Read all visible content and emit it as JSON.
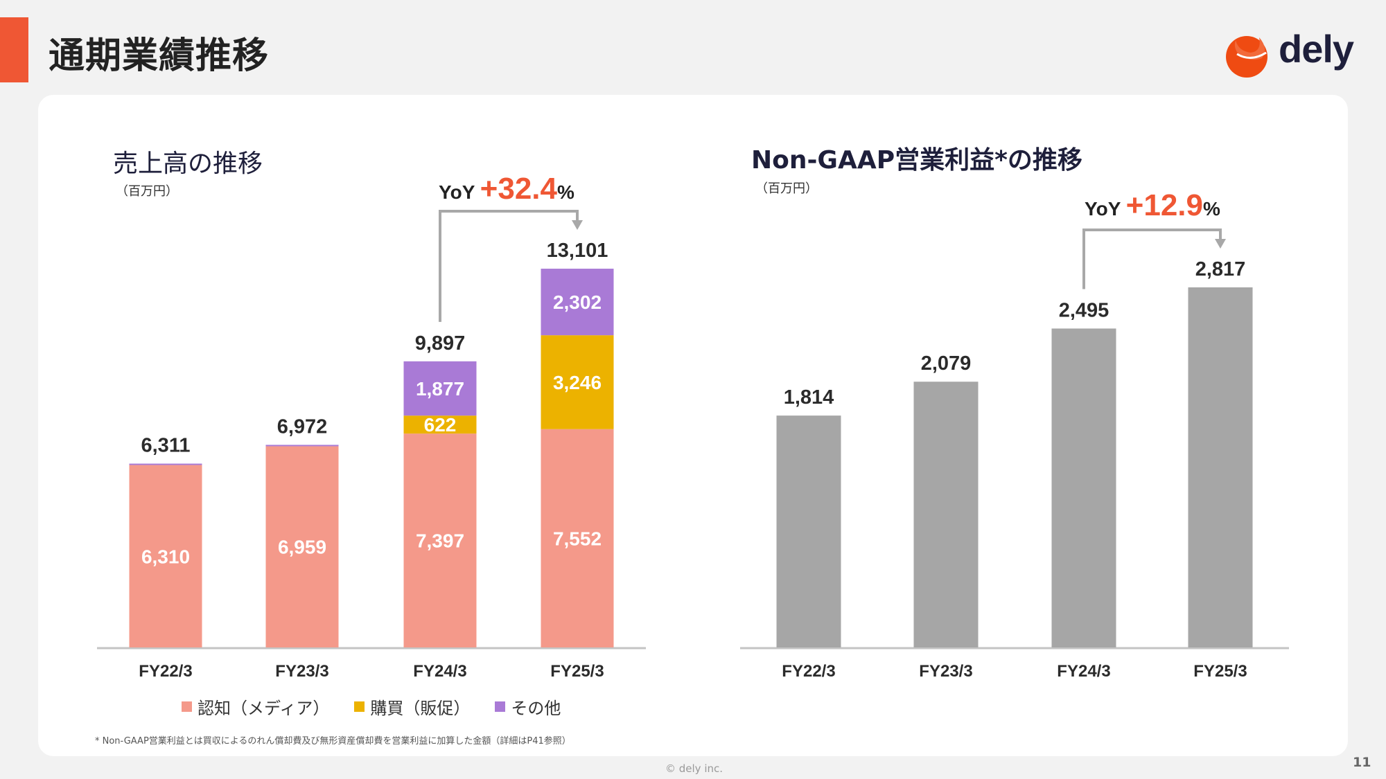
{
  "header": {
    "title": "通期業績推移",
    "accent_color": "#ef5734",
    "logo_text": "dely"
  },
  "chart_data": [
    {
      "type": "bar",
      "stacked": true,
      "title": "売上高の推移",
      "unit_label": "（百万円）",
      "categories": [
        "FY22/3",
        "FY23/3",
        "FY24/3",
        "FY25/3"
      ],
      "series": [
        {
          "name": "認知（メディア）",
          "color": "#f4998a",
          "values": [
            6310,
            6959,
            7397,
            7552
          ],
          "labels": [
            "6,310",
            "6,959",
            "7,397",
            "7,552"
          ]
        },
        {
          "name": "購買（販促）",
          "color": "#ecb200",
          "values": [
            0,
            0,
            622,
            3246
          ],
          "labels": [
            "",
            "",
            "622",
            "3,246"
          ]
        },
        {
          "name": "その他",
          "color": "#a97ad6",
          "values": [
            1,
            13,
            1877,
            2302
          ],
          "labels": [
            "",
            "",
            "1,877",
            "2,302"
          ]
        }
      ],
      "totals": [
        6311,
        6972,
        9897,
        13101
      ],
      "total_labels": [
        "6,311",
        "6,972",
        "9,897",
        "13,101"
      ],
      "yoy": {
        "prefix": "YoY ",
        "value": "+32.4",
        "suffix": "%",
        "from": "FY24/3",
        "to": "FY25/3"
      },
      "xlabel": "",
      "ylabel": "",
      "ylim": [
        0,
        13101
      ],
      "legend_position": "bottom"
    },
    {
      "type": "bar",
      "title": "Non-GAAP営業利益*の推移",
      "unit_label": "（百万円）",
      "categories": [
        "FY22/3",
        "FY23/3",
        "FY24/3",
        "FY25/3"
      ],
      "series": [
        {
          "name": "Non-GAAP営業利益",
          "color": "#a6a6a6",
          "values": [
            1814,
            2079,
            2495,
            2817
          ],
          "labels": [
            "1,814",
            "2,079",
            "2,495",
            "2,817"
          ]
        }
      ],
      "yoy": {
        "prefix": "YoY ",
        "value": "+12.9",
        "suffix": "%",
        "from": "FY24/3",
        "to": "FY25/3"
      },
      "xlabel": "",
      "ylabel": "",
      "ylim": [
        0,
        2817
      ]
    }
  ],
  "footnote": "* Non-GAAP営業利益とは買収によるのれん償却費及び無形資産償却費を営業利益に加算した金額（詳細はP41参照）",
  "footer": {
    "copyright": "© dely inc.",
    "page_number": "11"
  }
}
